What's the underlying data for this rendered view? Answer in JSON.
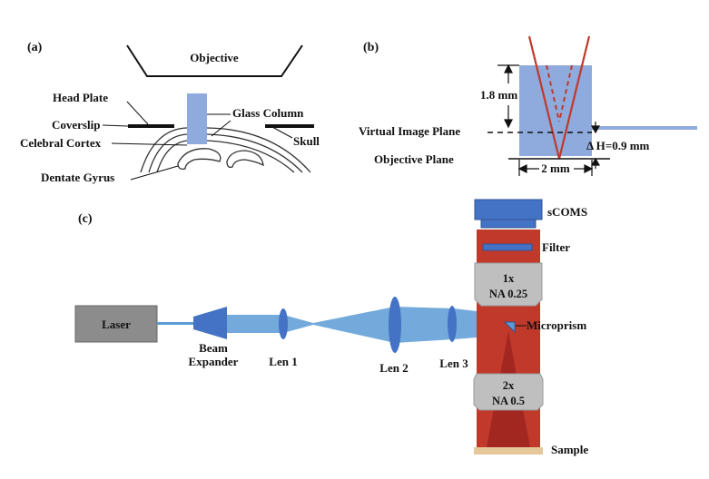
{
  "panel_a": {
    "letter": "(a)",
    "labels": {
      "objective": "Objective",
      "head_plate": "Head Plate",
      "glass_column": "Glass Column",
      "coverslip": "Coverslip",
      "cortex": "Celebral Cortex",
      "skull": "Skull",
      "dentate_gyrus": "Dentate Gyrus"
    }
  },
  "panel_b": {
    "letter": "(b)",
    "labels": {
      "height": "1.8 mm",
      "virtual_image_plane": "Virtual Image Plane",
      "delta_h": "Δ H=0.9 mm",
      "objective_plane": "Objective Plane",
      "width": "2 mm"
    }
  },
  "panel_c": {
    "letter": "(c)",
    "labels": {
      "laser": "Laser",
      "beam_expander_1": "Beam",
      "beam_expander_2": "Expander",
      "len1": "Len 1",
      "len2": "Len 2",
      "len3": "Len 3",
      "scoms": "sCOMS",
      "filter": "Filter",
      "obj1_mag": "1x",
      "obj1_na": "NA 0.25",
      "obj2_mag": "2x",
      "obj2_na": "NA 0.5",
      "microprism": "Microprism",
      "sample": "Sample"
    }
  },
  "colors": {
    "beam_blue": "#5b9bd5",
    "glass_blue": "#8faadc",
    "lens_blue": "#4472c4",
    "red_light": "#c0392b",
    "dark_red": "#8b1a1a",
    "gray_box": "#8c8c8c",
    "objective_gray": "#bfbfbf",
    "sample_tan": "#e5c79a"
  }
}
